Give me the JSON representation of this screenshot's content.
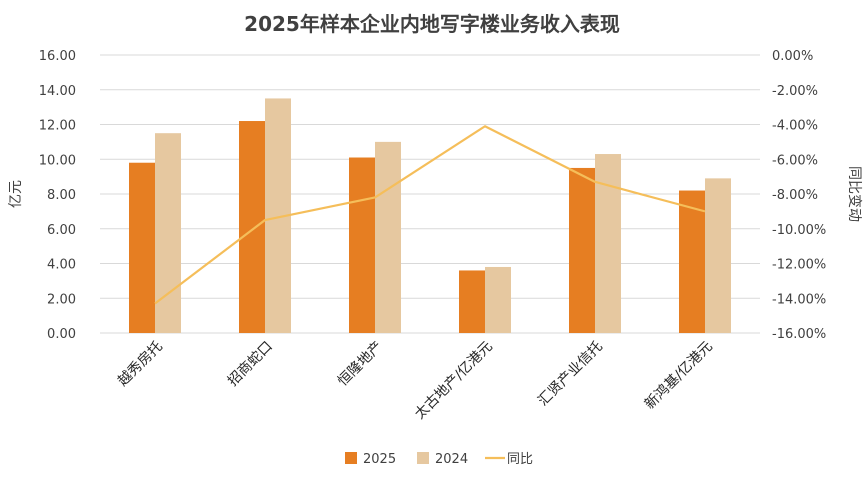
{
  "chart_data": {
    "type": "bar+line",
    "title": "2025年样本企业内地写字楼业务收入表现",
    "categories": [
      "越秀房托",
      "招商蛇口",
      "恒隆地产",
      "太古地产/亿港元",
      "汇贤产业信托",
      "新鸿基/亿港元"
    ],
    "series": [
      {
        "name": "2025",
        "type": "bar",
        "axis": "left",
        "color": "#E67E22",
        "values": [
          9.8,
          12.2,
          10.1,
          3.6,
          9.5,
          8.2
        ]
      },
      {
        "name": "2024",
        "type": "bar",
        "axis": "left",
        "color": "#E6C8A0",
        "values": [
          11.5,
          13.5,
          11.0,
          3.8,
          10.3,
          8.9
        ]
      },
      {
        "name": "同比",
        "type": "line",
        "axis": "right",
        "color": "#F5BE5A",
        "values": [
          -14.3,
          -9.5,
          -8.2,
          -4.1,
          -7.3,
          -9.0
        ]
      }
    ],
    "ylabel": "亿元",
    "ylabel_right": "同比变动",
    "ylim": [
      0,
      16
    ],
    "y_ticks": [
      "0.00",
      "2.00",
      "4.00",
      "6.00",
      "8.00",
      "10.00",
      "12.00",
      "14.00",
      "16.00"
    ],
    "ylim_right": [
      -16,
      0
    ],
    "y_ticks_right": [
      "-16.00%",
      "-14.00%",
      "-12.00%",
      "-10.00%",
      "-8.00%",
      "-6.00%",
      "-4.00%",
      "-2.00%",
      "0.00%"
    ],
    "grid": true,
    "legend_position": "bottom"
  }
}
